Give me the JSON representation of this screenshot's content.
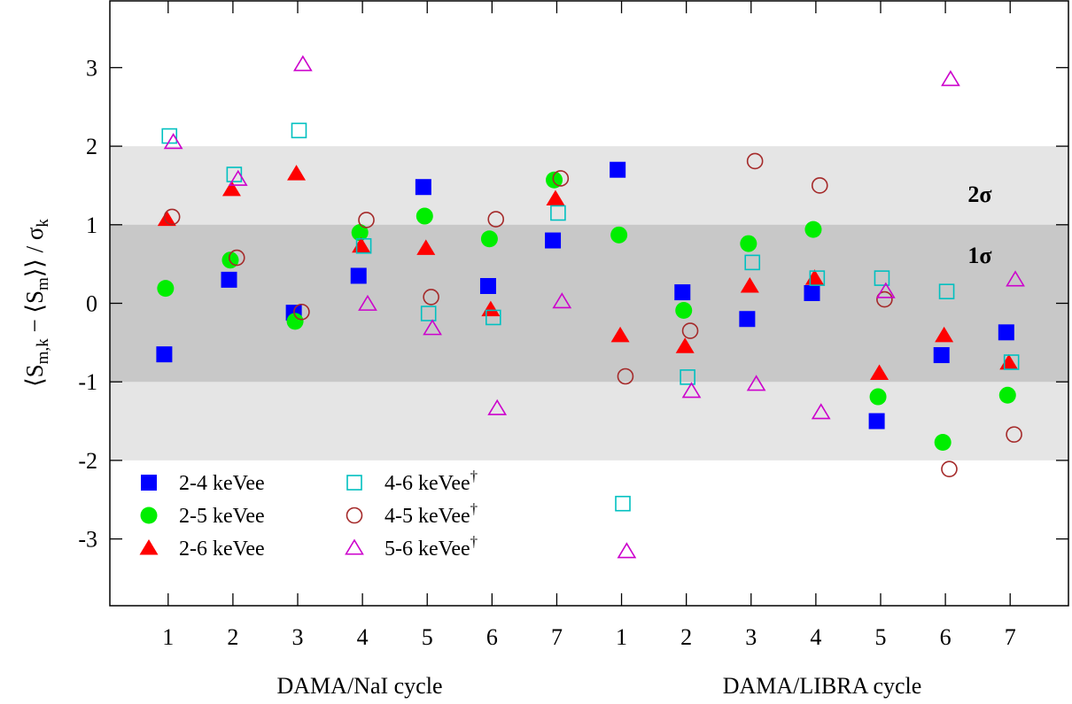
{
  "chart_data": {
    "type": "scatter",
    "ylabel_parts": [
      "⟨S",
      "m,k",
      " − ⟨S",
      "m",
      "⟩⟩ / σ",
      "k"
    ],
    "ylim": [
      -3.85,
      3.85
    ],
    "yticks": [
      -3,
      -2,
      -1,
      0,
      1,
      2,
      3
    ],
    "ytick_labels": [
      "-3",
      "-2",
      "-1",
      "0",
      "1",
      "2",
      "3"
    ],
    "xlim": [
      0.1,
      14.9
    ],
    "categories": [
      "1",
      "2",
      "3",
      "4",
      "5",
      "6",
      "7",
      "1",
      "2",
      "3",
      "4",
      "5",
      "6",
      "7"
    ],
    "group_labels": [
      "DAMA/NaI cycle",
      "DAMA/LIBRA cycle"
    ],
    "bands": [
      {
        "label": "2σ",
        "range": [
          -2,
          2
        ],
        "color": "#e5e5e5"
      },
      {
        "label": "1σ",
        "range": [
          -1,
          1
        ],
        "color": "#c8c8c8"
      }
    ],
    "legend_placement": "bottom-left",
    "series": [
      {
        "name": "2-4 keVee",
        "marker": "square-filled",
        "color": "#0000ff",
        "values": [
          -0.65,
          0.3,
          -0.12,
          0.35,
          1.48,
          0.22,
          0.8,
          1.7,
          0.14,
          -0.2,
          0.13,
          -1.5,
          -0.66,
          -0.37
        ]
      },
      {
        "name": "2-5 keVee",
        "marker": "circle-filled",
        "color": "#00ee00",
        "values": [
          0.19,
          0.55,
          -0.23,
          0.9,
          1.11,
          0.82,
          1.57,
          0.87,
          -0.09,
          0.76,
          0.94,
          -1.19,
          -1.77,
          -1.17
        ]
      },
      {
        "name": "2-6 keVee",
        "marker": "triangle-filled",
        "color": "#ff0000",
        "values": [
          1.07,
          1.45,
          1.65,
          0.73,
          0.7,
          -0.08,
          1.33,
          -0.41,
          -0.55,
          0.22,
          0.32,
          -0.89,
          -0.41,
          -0.76
        ]
      },
      {
        "name": "4-6 keVee",
        "superscript": "†",
        "marker": "square-open",
        "color": "#00c0c0",
        "values": [
          2.13,
          1.64,
          2.2,
          0.73,
          -0.13,
          -0.18,
          1.15,
          -2.55,
          -0.94,
          0.52,
          0.32,
          0.32,
          0.15,
          -0.75
        ]
      },
      {
        "name": "4-5 keVee",
        "superscript": "†",
        "marker": "circle-open",
        "color": "#a52a2a",
        "values": [
          1.1,
          0.58,
          -0.11,
          1.06,
          0.08,
          1.07,
          1.59,
          -0.93,
          -0.35,
          1.81,
          1.5,
          0.05,
          -2.11,
          -1.67
        ]
      },
      {
        "name": "5-6 keVee",
        "superscript": "†",
        "marker": "triangle-open",
        "color": "#cc00cc",
        "values": [
          2.05,
          1.58,
          3.04,
          -0.01,
          -0.32,
          -1.34,
          0.02,
          -3.16,
          -1.12,
          -1.03,
          -1.39,
          0.15,
          2.85,
          0.3
        ]
      }
    ]
  }
}
